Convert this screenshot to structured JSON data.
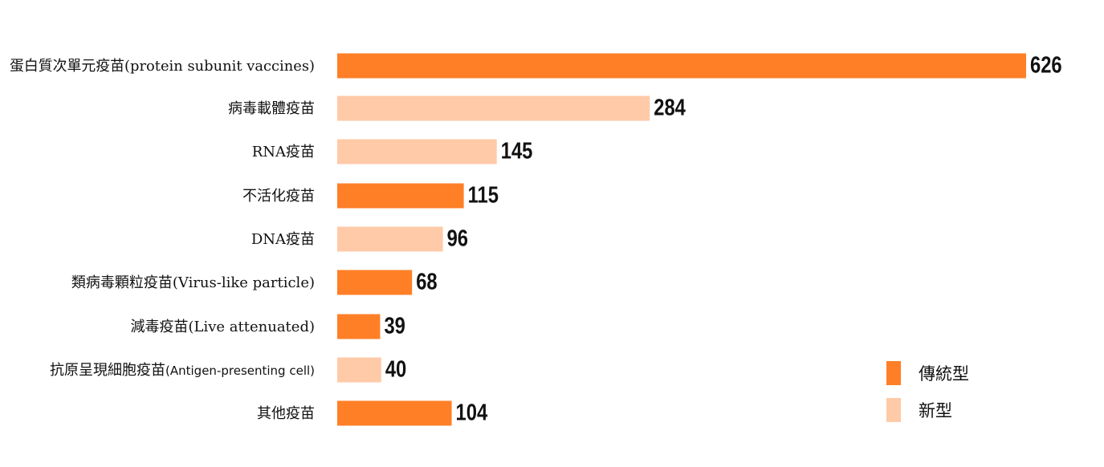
{
  "chart_data": {
    "type": "bar",
    "orientation": "horizontal",
    "categories": [
      "蛋白質次單元疫苗(protein subunit vaccines)",
      "病毒載體疫苗",
      "RNA疫苗",
      "不活化疫苗",
      "DNA疫苗",
      "類病毒顆粒疫苗(Virus-like particle)",
      "減毒疫苗(Live attenuated)",
      "抗原呈現細胞疫苗(Antigen-presenting cell)",
      "其他疫苗"
    ],
    "values": [
      626,
      284,
      145,
      115,
      96,
      68,
      39,
      40,
      104
    ],
    "types": [
      "傳統型",
      "新型",
      "新型",
      "傳統型",
      "新型",
      "傳統型",
      "傳統型",
      "新型",
      "傳統型"
    ],
    "legend": [
      {
        "name": "傳統型",
        "color": "#FF7F27"
      },
      {
        "name": "新型",
        "color": "#FFCAA7"
      }
    ],
    "legend_position": "bottom-right",
    "xlim": [
      0,
      626
    ],
    "grid": false,
    "title": "",
    "xlabel": "",
    "ylabel": ""
  }
}
